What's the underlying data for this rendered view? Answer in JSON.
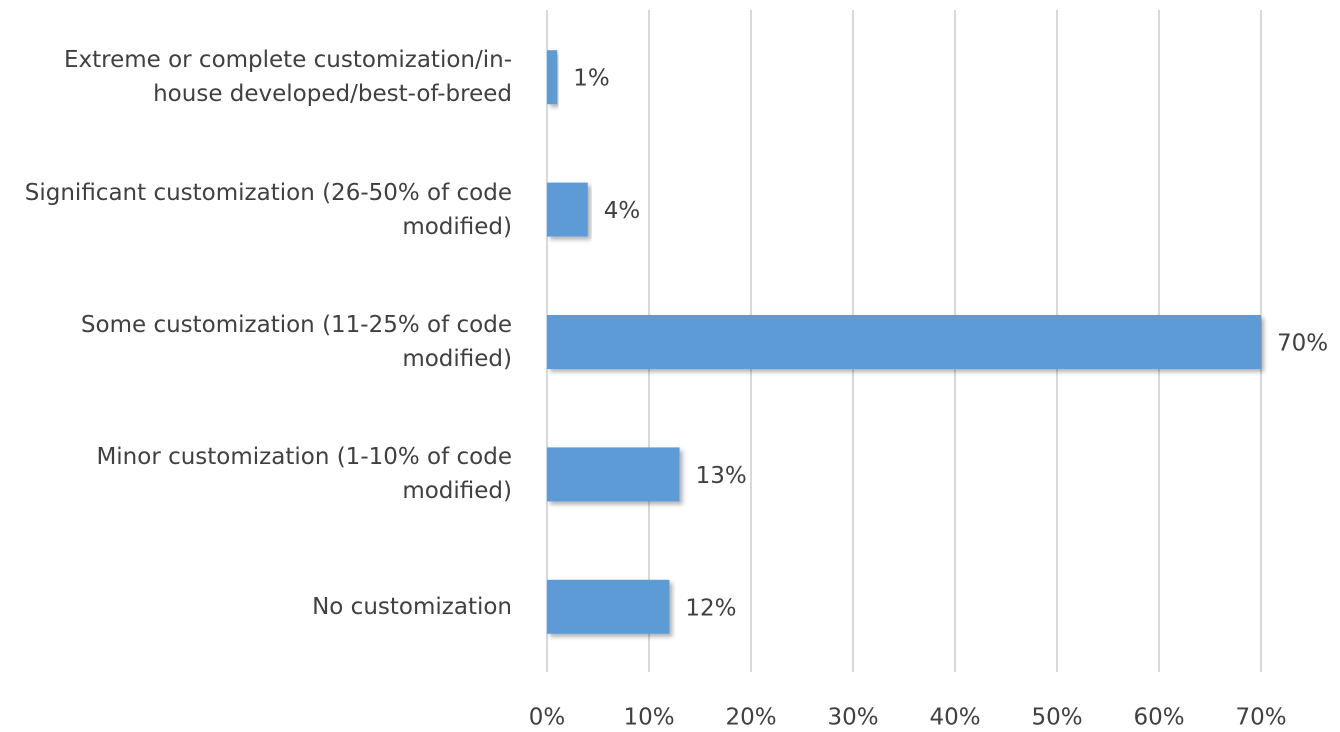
{
  "chart_data": {
    "type": "bar",
    "orientation": "horizontal",
    "categories": [
      "Extreme or complete customization/in-house developed/best-of-breed",
      "Significant customization (26-50% of code modified)",
      "Some customization (11-25% of code modified)",
      "Minor customization (1-10% of code modified)",
      "No customization"
    ],
    "values": [
      1,
      4,
      70,
      13,
      12
    ],
    "value_labels": [
      "1%",
      "4%",
      "70%",
      "13%",
      "12%"
    ],
    "color": "#5b9bd5",
    "xlim": [
      0,
      70
    ],
    "xticks": [
      {
        "value": 0,
        "label": "0%"
      },
      {
        "value": 10,
        "label": "10%"
      },
      {
        "value": 20,
        "label": "20%"
      },
      {
        "value": 30,
        "label": "30%"
      },
      {
        "value": 40,
        "label": "40%"
      },
      {
        "value": 50,
        "label": "50%"
      },
      {
        "value": 60,
        "label": "60%"
      },
      {
        "value": 70,
        "label": "70%"
      }
    ],
    "grid": true
  }
}
